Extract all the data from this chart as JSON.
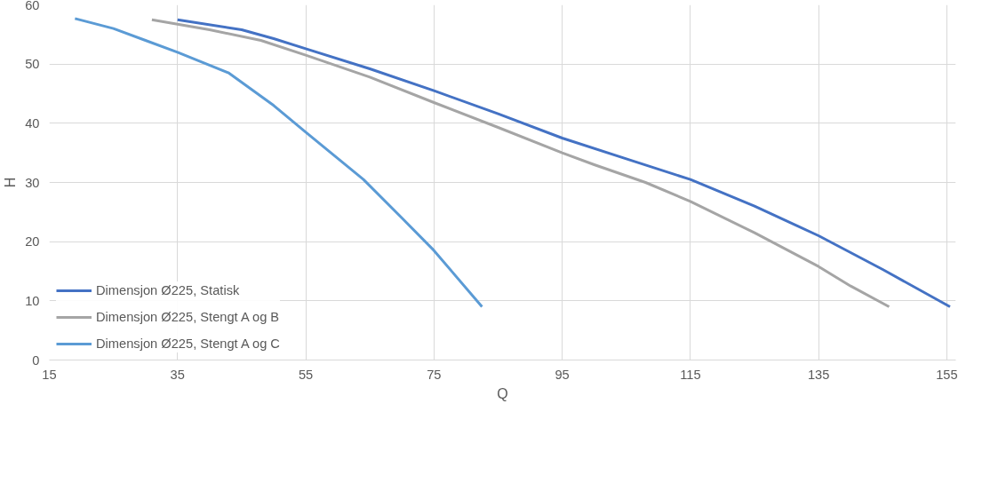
{
  "chart_data": {
    "type": "line",
    "xlabel": "Q",
    "ylabel": "H",
    "xlim": [
      15,
      156.4
    ],
    "xticks": [
      15,
      35,
      55,
      75,
      95,
      115,
      135,
      155
    ],
    "ylim": [
      0,
      60
    ],
    "yticks": [
      0,
      10,
      20,
      30,
      40,
      50,
      60
    ],
    "grid": true,
    "legend": "bottom left",
    "marker": "none",
    "line_style": "solid",
    "series": [
      {
        "name": "Dimensjon Ø225, Statisk",
        "color": "#4472c4",
        "x": [
          35,
          45,
          50,
          55,
          65,
          75,
          85,
          95,
          105,
          115,
          125,
          135,
          145,
          155.5
        ],
        "values": [
          57.5,
          55.8,
          54.3,
          52.6,
          49.2,
          45.5,
          41.6,
          37.5,
          34.0,
          30.5,
          26.0,
          21.0,
          15.3,
          9.0
        ]
      },
      {
        "name": "Dimensjon Ø225, Stengt A og B",
        "color": "#a5a5a5",
        "x": [
          31,
          40,
          48,
          55,
          65,
          75,
          85,
          95,
          100,
          108,
          115,
          125,
          135,
          140,
          146
        ],
        "values": [
          57.5,
          55.8,
          54.0,
          51.5,
          47.8,
          43.5,
          39.3,
          35.0,
          33.0,
          30.0,
          26.8,
          21.5,
          15.8,
          12.5,
          9.0
        ]
      },
      {
        "name": "Dimensjon Ø225, Stengt A og C",
        "color": "#5b9bd5",
        "x": [
          19,
          25,
          30,
          35,
          43,
          50,
          55,
          64,
          70,
          75,
          82.5
        ],
        "values": [
          57.7,
          56.0,
          54.0,
          52.0,
          48.5,
          43.0,
          38.5,
          30.5,
          24.0,
          18.5,
          9.0
        ]
      }
    ]
  }
}
